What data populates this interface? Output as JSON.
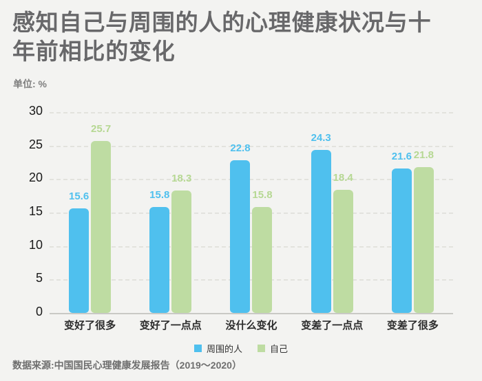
{
  "page": {
    "background": "#f3f3f1"
  },
  "header": {
    "title": "感知自己与周围的人的心理健康状况与十年前相比的变化",
    "unit_label": "单位: %"
  },
  "footer": {
    "source": "数据来源:中国国民心理健康发展报告（2019～2020）"
  },
  "chart_data": {
    "type": "bar",
    "title": "感知自己与周围的人的心理健康状况与十年前相比的变化",
    "unit": "%",
    "categories": [
      "变好了很多",
      "变好了一点点",
      "没什么变化",
      "变差了一点点",
      "变差了很多"
    ],
    "series": [
      {
        "name": "周围的人",
        "color": "#4fc0ee",
        "values": [
          15.6,
          15.8,
          22.8,
          24.3,
          21.6
        ]
      },
      {
        "name": "自己",
        "color": "#bedca2",
        "label_color": "#b6d893",
        "values": [
          25.7,
          18.3,
          15.8,
          18.4,
          21.8
        ]
      }
    ],
    "xlabel": "",
    "ylabel": "单位: %",
    "ylim": [
      0,
      30
    ],
    "yticks": [
      0,
      5,
      10,
      15,
      20,
      25,
      30
    ],
    "grid": "horizontal-dashed",
    "value_labels": true,
    "legend_position": "bottom-center"
  }
}
